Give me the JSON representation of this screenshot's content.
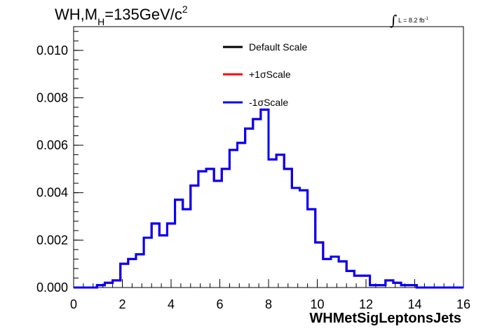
{
  "chart_data": {
    "type": "histogram",
    "title": "WH,M_H=135GeV/c^2",
    "title_parts": {
      "main": "WH,M",
      "sub": "H",
      "rest": "=135GeV/c",
      "sup": "2"
    },
    "xlabel": "WHMetSigLeptonsJets",
    "ylabel": "",
    "xlim": [
      0,
      16
    ],
    "ylim": [
      0,
      0.011
    ],
    "x_ticks": [
      "0",
      "2",
      "4",
      "6",
      "8",
      "10",
      "12",
      "14",
      "16"
    ],
    "y_ticks": [
      "0.000",
      "0.002",
      "0.004",
      "0.006",
      "0.008",
      "0.010"
    ],
    "lumi_label": {
      "integral": "∫",
      "text": "L = 8.2 fb",
      "sup": "-1"
    },
    "bin_edges_start": 0,
    "bin_width": 0.32,
    "series": [
      {
        "name": "Default Scale",
        "color": "#000000",
        "values": [
          0,
          0,
          0,
          0.0001,
          0.0002,
          0.0003,
          0.001,
          0.0012,
          0.0014,
          0.0021,
          0.0027,
          0.0022,
          0.0027,
          0.0037,
          0.0033,
          0.0043,
          0.0049,
          0.005,
          0.0045,
          0.005,
          0.0058,
          0.0061,
          0.0067,
          0.0071,
          0.0075,
          0.0054,
          0.0056,
          0.005,
          0.0042,
          0.0041,
          0.0033,
          0.0019,
          0.0012,
          0.0013,
          0.0011,
          0.0007,
          0.0005,
          0.0005,
          0.0001,
          0.0001,
          0.0003,
          0.0002,
          0.0001,
          0.0001,
          0,
          0,
          0,
          0,
          0,
          0
        ]
      },
      {
        "name": "+1σScale",
        "color": "#ff0000",
        "values": [
          0,
          0,
          0,
          0.0001,
          0.0002,
          0.0003,
          0.001,
          0.0012,
          0.0014,
          0.0021,
          0.0027,
          0.0022,
          0.0027,
          0.0037,
          0.0033,
          0.0043,
          0.0049,
          0.005,
          0.0045,
          0.005,
          0.0058,
          0.0061,
          0.0067,
          0.0071,
          0.0075,
          0.0054,
          0.0056,
          0.005,
          0.0042,
          0.0041,
          0.0033,
          0.0019,
          0.0012,
          0.0013,
          0.0011,
          0.0007,
          0.0005,
          0.0005,
          0.0001,
          0.0001,
          0.0003,
          0.0002,
          0.0001,
          0.0001,
          0,
          0,
          0,
          0,
          0,
          0
        ]
      },
      {
        "name": "-1σScale",
        "color": "#0000ff",
        "values": [
          0,
          0,
          0,
          0.0001,
          0.0002,
          0.0003,
          0.001,
          0.0012,
          0.0014,
          0.0021,
          0.0027,
          0.0022,
          0.0027,
          0.0037,
          0.0033,
          0.0043,
          0.0049,
          0.005,
          0.0045,
          0.005,
          0.0058,
          0.0061,
          0.0067,
          0.0071,
          0.0075,
          0.0054,
          0.0056,
          0.005,
          0.0042,
          0.0041,
          0.0033,
          0.0019,
          0.0012,
          0.0013,
          0.0011,
          0.0007,
          0.0005,
          0.0005,
          0.0001,
          0.0001,
          0.0003,
          0.0002,
          0.0001,
          0.0001,
          0,
          0,
          0,
          0,
          0,
          0
        ]
      }
    ],
    "legend": {
      "placement": "top-center",
      "entries": [
        "Default Scale",
        "+1σScale",
        "-1σScale"
      ]
    }
  }
}
